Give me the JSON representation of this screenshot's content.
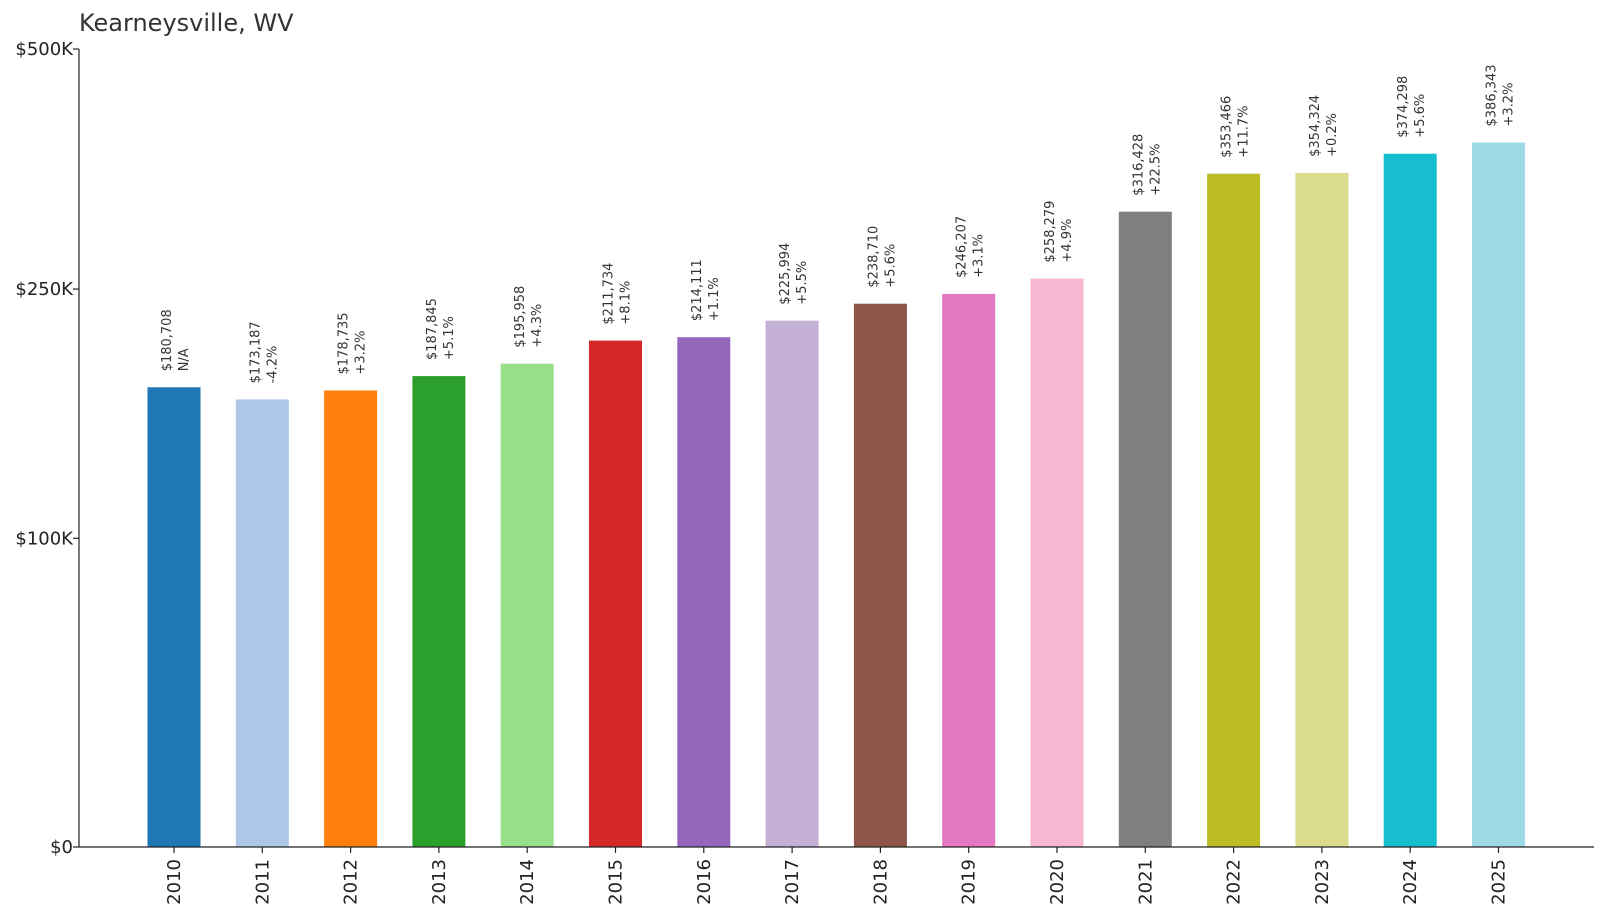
{
  "chart_data": {
    "type": "bar",
    "title": "Kearneysville, WV",
    "xlabel": "",
    "ylabel": "",
    "categories": [
      "2010",
      "2011",
      "2012",
      "2013",
      "2014",
      "2015",
      "2016",
      "2017",
      "2018",
      "2019",
      "2020",
      "2021",
      "2022",
      "2023",
      "2024",
      "2025"
    ],
    "values": [
      180708,
      173187,
      178735,
      187845,
      195958,
      211734,
      214111,
      225994,
      238710,
      246207,
      258279,
      316428,
      353466,
      354324,
      374298,
      386343
    ],
    "value_labels": [
      "$180,708",
      "$173,187",
      "$178,735",
      "$187,845",
      "$195,958",
      "$211,734",
      "$214,111",
      "$225,994",
      "$238,710",
      "$246,207",
      "$258,279",
      "$316,428",
      "$353,466",
      "$354,324",
      "$374,298",
      "$386,343"
    ],
    "change_labels": [
      "N/A",
      "-4.2%",
      "+3.2%",
      "+5.1%",
      "+4.3%",
      "+8.1%",
      "+1.1%",
      "+5.5%",
      "+5.6%",
      "+3.1%",
      "+4.9%",
      "+22.5%",
      "+11.7%",
      "+0.2%",
      "+5.6%",
      "+3.2%"
    ],
    "colors": [
      "#1f77b4",
      "#aec7e8",
      "#ff7f0e",
      "#2ca02c",
      "#98df8a",
      "#d62728",
      "#9467bd",
      "#c5b0d5",
      "#8c564b",
      "#e377c2",
      "#f7b6d2",
      "#7f7f7f",
      "#bcbd22",
      "#dbdb8d",
      "#17becf",
      "#9edae5"
    ],
    "yticks": [
      0,
      100000,
      250000,
      500000
    ],
    "ytick_labels": [
      "$0",
      "$100K",
      "$250K",
      "$500K"
    ],
    "ylim": [
      0,
      500000
    ],
    "yscale": "symlog",
    "grid": false,
    "legend": "none"
  }
}
